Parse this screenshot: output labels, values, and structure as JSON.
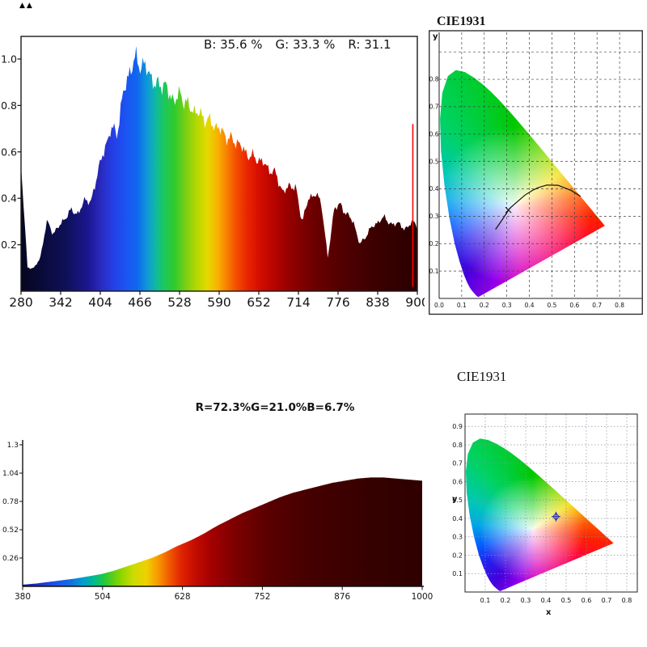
{
  "misc": {
    "corner_mark": "▲▲"
  },
  "chart_data": [
    {
      "id": "top-spectrum",
      "type": "area",
      "title": "",
      "annotations": [
        "B: 35.6 %",
        "G: 33.3 %",
        "R: 31.1"
      ],
      "xlim": [
        280,
        900
      ],
      "ylim": [
        0,
        1.1
      ],
      "x_ticks": [
        280,
        342,
        404,
        466,
        528,
        590,
        652,
        714,
        776,
        838,
        900
      ],
      "y_tick_values": [
        0.2,
        0.4,
        0.6,
        0.8,
        1.0
      ],
      "y_tick_labels": [
        "0.2",
        "0.4",
        "0.6",
        "0.8",
        "1.0"
      ],
      "marker_line": {
        "x": 893,
        "y_from": 0.02,
        "y_to": 0.72,
        "color": "#ff0000"
      },
      "x": [
        280,
        290,
        300,
        310,
        320,
        330,
        340,
        350,
        360,
        370,
        380,
        390,
        400,
        410,
        420,
        430,
        440,
        450,
        460,
        470,
        480,
        490,
        500,
        510,
        520,
        530,
        540,
        550,
        560,
        570,
        580,
        590,
        600,
        610,
        620,
        630,
        640,
        650,
        660,
        670,
        680,
        690,
        700,
        710,
        720,
        730,
        740,
        750,
        760,
        770,
        780,
        790,
        800,
        810,
        820,
        830,
        840,
        850,
        860,
        870,
        880,
        890,
        900
      ],
      "y": [
        0.56,
        0.1,
        0.1,
        0.14,
        0.3,
        0.25,
        0.28,
        0.32,
        0.35,
        0.33,
        0.4,
        0.38,
        0.52,
        0.6,
        0.7,
        0.68,
        0.85,
        0.95,
        1.0,
        0.97,
        0.95,
        0.88,
        0.9,
        0.86,
        0.82,
        0.85,
        0.8,
        0.78,
        0.76,
        0.74,
        0.72,
        0.7,
        0.67,
        0.65,
        0.64,
        0.6,
        0.58,
        0.57,
        0.55,
        0.52,
        0.5,
        0.42,
        0.46,
        0.44,
        0.3,
        0.4,
        0.42,
        0.38,
        0.14,
        0.36,
        0.37,
        0.33,
        0.3,
        0.2,
        0.24,
        0.28,
        0.3,
        0.32,
        0.28,
        0.3,
        0.26,
        0.3,
        0.28
      ]
    },
    {
      "id": "top-cie",
      "type": "chromaticity",
      "title": "CIE1931",
      "ylabel": "y",
      "xlim": [
        0,
        0.9
      ],
      "ylim": [
        0,
        0.93
      ],
      "x_tick_values": [
        0,
        0.1,
        0.2,
        0.3,
        0.4,
        0.5,
        0.6,
        0.7,
        0.8
      ],
      "x_tick_labels": [
        "0.0",
        "0.1",
        "0.2",
        "0.3",
        "0.4",
        "0.5",
        "0.6",
        "0.7",
        "0.8"
      ],
      "y_tick_values": [
        0.1,
        0.2,
        0.3,
        0.4,
        0.5,
        0.6,
        0.7,
        0.8
      ],
      "y_tick_labels": [
        "0.1",
        "0.2",
        "0.3",
        "0.4",
        "0.5",
        "0.6",
        "0.7",
        "0.8"
      ],
      "planckian_locus": [
        [
          0.25,
          0.252
        ],
        [
          0.28,
          0.288
        ],
        [
          0.313,
          0.329
        ],
        [
          0.345,
          0.352
        ],
        [
          0.38,
          0.377
        ],
        [
          0.417,
          0.396
        ],
        [
          0.437,
          0.404
        ],
        [
          0.477,
          0.414
        ],
        [
          0.527,
          0.413
        ],
        [
          0.586,
          0.394
        ],
        [
          0.627,
          0.373
        ]
      ],
      "marker": {
        "x": 0.307,
        "y": 0.323,
        "symbol": "cross",
        "color": "#151515"
      }
    },
    {
      "id": "bottom-spectrum",
      "type": "area",
      "title": "R=72.3%G=21.0%B=6.7%",
      "xlim": [
        380,
        1000
      ],
      "ylim": [
        0,
        1.3
      ],
      "x_ticks": [
        380,
        504,
        628,
        752,
        876,
        1000
      ],
      "y_tick_values": [
        0.26,
        0.52,
        0.78,
        1.04,
        1.3
      ],
      "y_tick_labels": [
        "0.26",
        "0.52",
        "0.78",
        "1.04",
        "1.3"
      ],
      "x": [
        380,
        400,
        420,
        440,
        460,
        480,
        500,
        520,
        540,
        560,
        580,
        600,
        620,
        640,
        660,
        680,
        700,
        720,
        740,
        760,
        780,
        800,
        820,
        840,
        860,
        880,
        900,
        920,
        940,
        960,
        980,
        1000
      ],
      "y": [
        0.015,
        0.025,
        0.04,
        0.055,
        0.07,
        0.09,
        0.11,
        0.14,
        0.18,
        0.22,
        0.26,
        0.31,
        0.37,
        0.42,
        0.48,
        0.55,
        0.61,
        0.67,
        0.72,
        0.77,
        0.82,
        0.86,
        0.89,
        0.92,
        0.95,
        0.97,
        0.99,
        1.0,
        1.0,
        0.99,
        0.98,
        0.97
      ]
    },
    {
      "id": "bottom-cie",
      "type": "chromaticity",
      "title": "CIE1931",
      "xlabel": "x",
      "ylabel": "y",
      "xlim": [
        0,
        0.852
      ],
      "ylim": [
        0,
        0.967
      ],
      "x_tick_values": [
        0.1,
        0.2,
        0.3,
        0.4,
        0.5,
        0.6,
        0.7,
        0.8
      ],
      "x_tick_labels": [
        "0.1",
        "0.2",
        "0.3",
        "0.4",
        "0.5",
        "0.6",
        "0.7",
        "0.8"
      ],
      "y_tick_values": [
        0.1,
        0.2,
        0.3,
        0.4,
        0.5,
        0.6,
        0.7,
        0.8,
        0.9
      ],
      "y_tick_labels": [
        "0.1",
        "0.2",
        "0.3",
        "0.4",
        "0.5",
        "0.6",
        "0.7",
        "0.8",
        "0.9"
      ],
      "marker": {
        "x": 0.45,
        "y": 0.41,
        "symbol": "diamond-cross",
        "color": "#2233bb"
      }
    }
  ]
}
